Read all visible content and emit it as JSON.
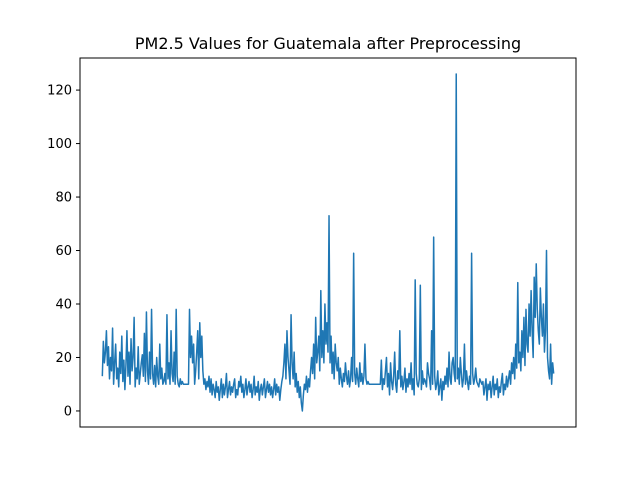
{
  "chart_data": {
    "type": "line",
    "title": "PM2.5 Values for Guatemala after Preprocessing",
    "xlabel": "",
    "ylabel": "",
    "ylim": [
      -6,
      132
    ],
    "yticks": [
      0,
      20,
      40,
      60,
      80,
      100,
      120
    ],
    "x_ticks_visible": false,
    "grid": false,
    "color": "#1f77b4",
    "series": [
      {
        "values": [
          13,
          26,
          18,
          22,
          30,
          17,
          24,
          12,
          20,
          15,
          31,
          10,
          18,
          25,
          12,
          16,
          9,
          22,
          14,
          28,
          11,
          19,
          8,
          17,
          30,
          13,
          22,
          10,
          27,
          15,
          20,
          35,
          9,
          16,
          12,
          24,
          10,
          14,
          18,
          21,
          13,
          29,
          11,
          37,
          15,
          10,
          22,
          12,
          38,
          14,
          10,
          17,
          9,
          20,
          13,
          10,
          25,
          12,
          16,
          10,
          11,
          14,
          10,
          36,
          12,
          18,
          10,
          30,
          14,
          11,
          22,
          10,
          38,
          13,
          10,
          9,
          12,
          10,
          11,
          10,
          10,
          10,
          10,
          10,
          10,
          38,
          20,
          28,
          18,
          25,
          10,
          15,
          22,
          30,
          12,
          33,
          20,
          28,
          15,
          10,
          12,
          8,
          11,
          9,
          13,
          7,
          12,
          6,
          10,
          8,
          5,
          11,
          7,
          9,
          4,
          8,
          12,
          5,
          10,
          6,
          9,
          14,
          5,
          8,
          11,
          6,
          9,
          7,
          10,
          12,
          5,
          8,
          6,
          11,
          9,
          13,
          7,
          10,
          5,
          8,
          12,
          6,
          9,
          11,
          7,
          10,
          5,
          8,
          13,
          6,
          9,
          7,
          11,
          4,
          8,
          10,
          6,
          9,
          12,
          5,
          8,
          11,
          7,
          10,
          6,
          9,
          5,
          8,
          12,
          6,
          10,
          7,
          9,
          4,
          8,
          11,
          13,
          18,
          25,
          12,
          30,
          20,
          15,
          10,
          36,
          18,
          12,
          22,
          9,
          14,
          7,
          11,
          5,
          9,
          3,
          0,
          6,
          10,
          8,
          13,
          7,
          12,
          9,
          15,
          20,
          14,
          25,
          12,
          35,
          18,
          22,
          28,
          15,
          45,
          20,
          30,
          18,
          40,
          25,
          33,
          22,
          73,
          18,
          28,
          14,
          22,
          12,
          25,
          18,
          15,
          20,
          10,
          16,
          12,
          9,
          14,
          11,
          18,
          13,
          10,
          15,
          9,
          12,
          20,
          11,
          59,
          14,
          10,
          16,
          12,
          9,
          18,
          11,
          14,
          10,
          13,
          25,
          12,
          10,
          11,
          10,
          10,
          10,
          10,
          10,
          10,
          10,
          10,
          10,
          10,
          10,
          10,
          19,
          8,
          12,
          10,
          15,
          20,
          9,
          14,
          6,
          18,
          11,
          8,
          13,
          22,
          10,
          7,
          15,
          12,
          30,
          9,
          13,
          8,
          11,
          16,
          7,
          12,
          9,
          14,
          10,
          18,
          8,
          12,
          6,
          49,
          14,
          10,
          9,
          12,
          47,
          8,
          15,
          10,
          12,
          11,
          9,
          18,
          14,
          12,
          8,
          30,
          10,
          65,
          13,
          8,
          10,
          15,
          6,
          9,
          12,
          4,
          11,
          8,
          13,
          10,
          16,
          9,
          22,
          12,
          10,
          18,
          20,
          14,
          11,
          126,
          12,
          16,
          10,
          20,
          14,
          9,
          12,
          25,
          10,
          15,
          11,
          8,
          13,
          10,
          59,
          14,
          10,
          12,
          16,
          11,
          10,
          9,
          12,
          11,
          10,
          11,
          6,
          9,
          12,
          4,
          10,
          8,
          11,
          5,
          9,
          13,
          6,
          10,
          8,
          12,
          5,
          9,
          7,
          11,
          14,
          6,
          10,
          8,
          13,
          9,
          12,
          15,
          10,
          18,
          14,
          20,
          12,
          25,
          16,
          48,
          18,
          22,
          15,
          30,
          20,
          35,
          17,
          38,
          25,
          22,
          40,
          28,
          45,
          30,
          20,
          50,
          35,
          55,
          38,
          30,
          25,
          46,
          35,
          28,
          40,
          22,
          30,
          60,
          20,
          15,
          12,
          25,
          10,
          18,
          14
        ]
      }
    ]
  }
}
